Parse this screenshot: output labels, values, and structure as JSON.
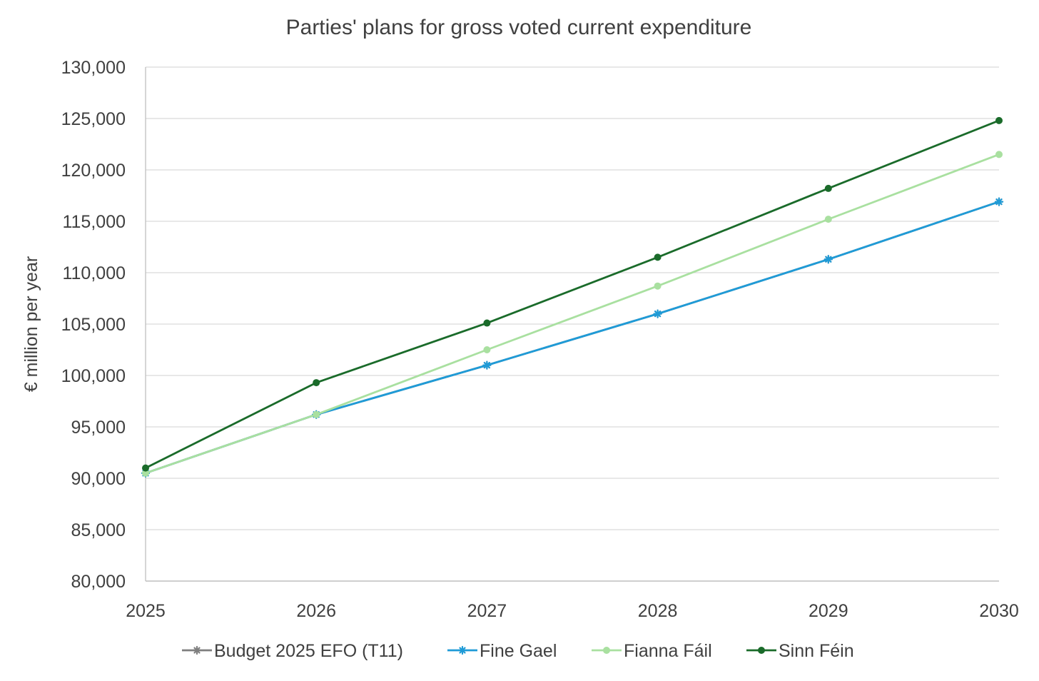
{
  "chart_data": {
    "type": "line",
    "title": "Parties' plans for gross voted current expenditure",
    "xlabel": "",
    "ylabel": "€ million per year",
    "x": [
      "2025",
      "2026",
      "2027",
      "2028",
      "2029",
      "2030"
    ],
    "ylim": [
      80000,
      130000
    ],
    "yticks": [
      "80,000",
      "85,000",
      "90,000",
      "95,000",
      "100,000",
      "105,000",
      "110,000",
      "115,000",
      "120,000",
      "125,000",
      "130,000"
    ],
    "grid": true,
    "legend_position": "bottom",
    "series": [
      {
        "name": "Budget 2025 EFO (T11)",
        "color": "#7f7f7f",
        "marker": "star",
        "values": [
          90500,
          96200,
          101000,
          106000,
          111300,
          116900
        ]
      },
      {
        "name": "Fine Gael",
        "color": "#1f9bd7",
        "marker": "star",
        "values": [
          90500,
          96200,
          101000,
          106000,
          111300,
          116900
        ]
      },
      {
        "name": "Fianna Fáil",
        "color": "#a9e0a0",
        "marker": "circle",
        "values": [
          90500,
          96200,
          102500,
          108700,
          115200,
          121500
        ]
      },
      {
        "name": "Sinn Féin",
        "color": "#1a6b2a",
        "marker": "circle",
        "values": [
          91000,
          99300,
          105100,
          111500,
          118200,
          124800
        ]
      }
    ]
  }
}
